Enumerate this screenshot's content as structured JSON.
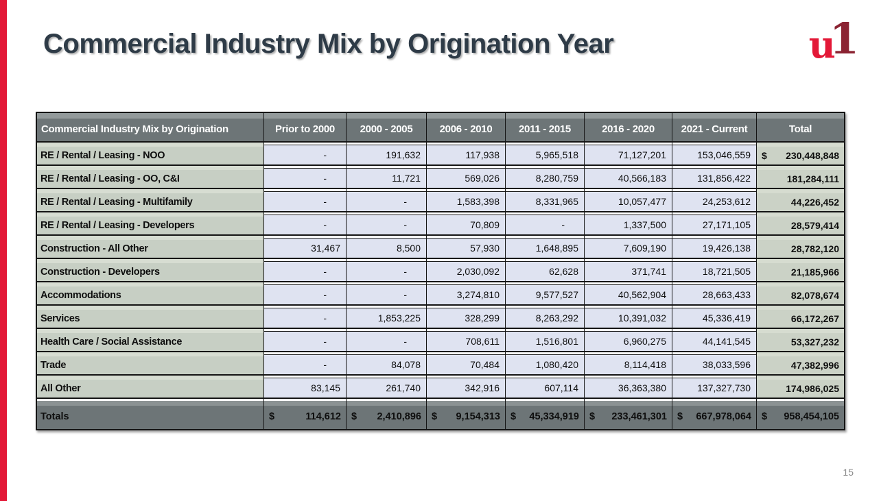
{
  "slide": {
    "title": "Commercial Industry Mix by Origination Year",
    "page_number": "15"
  },
  "logo": {
    "u": "u",
    "one": "1",
    "u_color": "#e31837",
    "one_color": "#8b2332"
  },
  "colors": {
    "accent_bar": "#e31837",
    "header_slate": "#6d7577",
    "label_sage": "#c7cfc4",
    "data_lavender": "#dfe3f1",
    "title_text": "#2e3b47"
  },
  "table": {
    "header": [
      "Commercial Industry Mix by Origination",
      "Prior to 2000",
      "2000 - 2005",
      "2006 - 2010",
      "2011 - 2015",
      "2016 - 2020",
      "2021 - Current",
      "Total"
    ],
    "rows": [
      {
        "label": "RE / Rental / Leasing - NOO",
        "values": [
          "-",
          "191,632",
          "117,938",
          "5,965,518",
          "71,127,201",
          "153,046,559"
        ],
        "total_prefix": "$",
        "total": "230,448,848"
      },
      {
        "label": "RE / Rental / Leasing - OO, C&I",
        "values": [
          "-",
          "11,721",
          "569,026",
          "8,280,759",
          "40,566,183",
          "131,856,422"
        ],
        "total": "181,284,111"
      },
      {
        "label": "RE / Rental / Leasing - Multifamily",
        "values": [
          "-",
          "-",
          "1,583,398",
          "8,331,965",
          "10,057,477",
          "24,253,612"
        ],
        "total": "44,226,452"
      },
      {
        "label": "RE / Rental / Leasing - Developers",
        "values": [
          "-",
          "-",
          "70,809",
          "-",
          "1,337,500",
          "27,171,105"
        ],
        "total": "28,579,414"
      },
      {
        "label": "Construction - All Other",
        "values": [
          "31,467",
          "8,500",
          "57,930",
          "1,648,895",
          "7,609,190",
          "19,426,138"
        ],
        "total": "28,782,120"
      },
      {
        "label": "Construction - Developers",
        "values": [
          "-",
          "-",
          "2,030,092",
          "62,628",
          "371,741",
          "18,721,505"
        ],
        "total": "21,185,966"
      },
      {
        "label": "Accommodations",
        "values": [
          "-",
          "-",
          "3,274,810",
          "9,577,527",
          "40,562,904",
          "28,663,433"
        ],
        "total": "82,078,674"
      },
      {
        "label": "Services",
        "values": [
          "-",
          "1,853,225",
          "328,299",
          "8,263,292",
          "10,391,032",
          "45,336,419"
        ],
        "total": "66,172,267"
      },
      {
        "label": "Health Care / Social Assistance",
        "values": [
          "-",
          "-",
          "708,611",
          "1,516,801",
          "6,960,275",
          "44,141,545"
        ],
        "total": "53,327,232"
      },
      {
        "label": "Trade",
        "values": [
          "-",
          "84,078",
          "70,484",
          "1,080,420",
          "8,114,418",
          "38,033,596"
        ],
        "total": "47,382,996"
      },
      {
        "label": "All Other",
        "values": [
          "83,145",
          "261,740",
          "342,916",
          "607,114",
          "36,363,380",
          "137,327,730"
        ],
        "total": "174,986,025"
      }
    ],
    "totals": {
      "label": "Totals",
      "currency": "$",
      "values": [
        "114,612",
        "2,410,896",
        "9,154,313",
        "45,334,919",
        "233,461,301",
        "667,978,064",
        "958,454,105"
      ]
    }
  }
}
